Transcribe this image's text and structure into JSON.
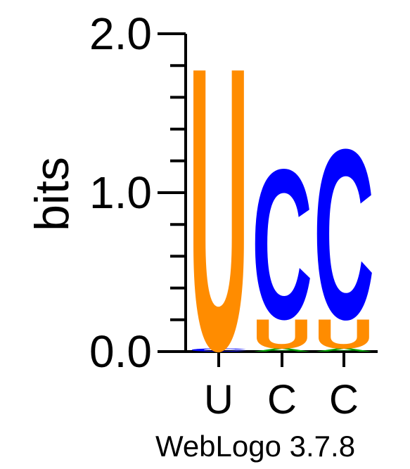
{
  "chart_data": {
    "type": "sequence-logo",
    "ylabel": "bits",
    "ylim": [
      0,
      2
    ],
    "yticks": [
      "0.0",
      "1.0",
      "2.0"
    ],
    "xticks": [
      "U",
      "C",
      "C"
    ],
    "footer": "WebLogo 3.7.8",
    "colors": {
      "U": "#FF8C00",
      "C": "#0000FF"
    },
    "positions": [
      {
        "label": "U",
        "stack": [
          {
            "letter": "U",
            "bits": 1.83
          },
          {
            "letter": "C",
            "bits": 0.02
          }
        ]
      },
      {
        "label": "C",
        "stack": [
          {
            "letter": "U",
            "bits": 0.19
          },
          {
            "letter": "C",
            "bits": 0.97
          },
          {
            "letter": "A",
            "bits": 0.02
          }
        ]
      },
      {
        "label": "C",
        "stack": [
          {
            "letter": "U",
            "bits": 0.19
          },
          {
            "letter": "C",
            "bits": 1.1
          },
          {
            "letter": "A",
            "bits": 0.02
          }
        ]
      }
    ]
  }
}
